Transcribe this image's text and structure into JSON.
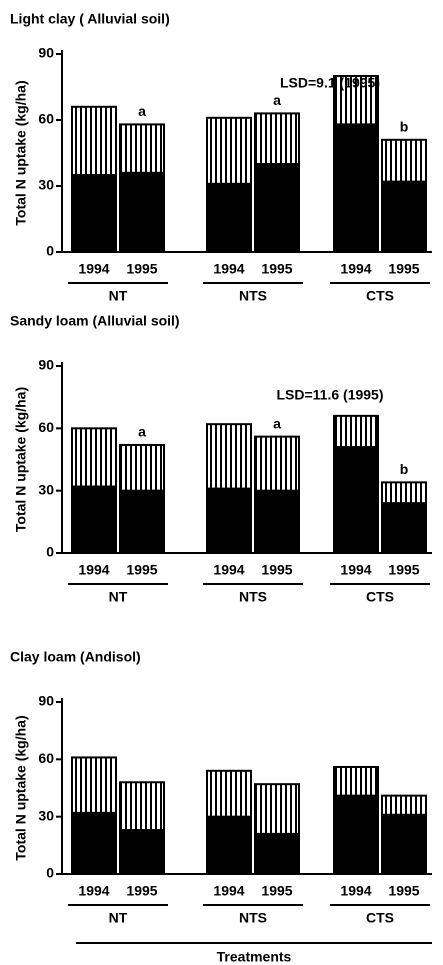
{
  "chart_data": [
    {
      "type": "bar",
      "title": "Light clay  ( Alluvial soil)",
      "ylabel": "Total N uptake (kg/ha)",
      "annotation": "LSD=9.1 (1995)",
      "categories": [
        "1994",
        "1995",
        "1994",
        "1995",
        "1994",
        "1995"
      ],
      "groups": [
        "NT",
        "NTS",
        "CTS"
      ],
      "series": [
        {
          "color": "#000000",
          "values": [
            35,
            36,
            31,
            40,
            58,
            32
          ]
        },
        {
          "color": "#ffffff",
          "hatch": true,
          "values": [
            31,
            22,
            30,
            23,
            22,
            19
          ]
        }
      ],
      "bar_labels": [
        null,
        "a",
        null,
        "a",
        null,
        "b"
      ],
      "ylim": [
        0,
        90
      ],
      "yticks": [
        0,
        30,
        60,
        90
      ]
    },
    {
      "type": "bar",
      "title": "Sandy loam (Alluvial soil)",
      "ylabel": "Total N uptake (kg/ha)",
      "annotation": "LSD=11.6 (1995)",
      "categories": [
        "1994",
        "1995",
        "1994",
        "1995",
        "1994",
        "1995"
      ],
      "groups": [
        "NT",
        "NTS",
        "CTS"
      ],
      "series": [
        {
          "color": "#000000",
          "values": [
            32,
            30,
            31,
            30,
            51,
            24
          ]
        },
        {
          "color": "#ffffff",
          "hatch": true,
          "values": [
            28,
            22,
            31,
            26,
            15,
            10
          ]
        }
      ],
      "bar_labels": [
        null,
        "a",
        null,
        "a",
        null,
        "b"
      ],
      "ylim": [
        0,
        90
      ],
      "yticks": [
        0,
        30,
        60,
        90
      ]
    },
    {
      "type": "bar",
      "title": "Clay loam (Andisol)",
      "ylabel": "Total N uptake (kg/ha)",
      "xlabel": "Treatments",
      "categories": [
        "1994",
        "1995",
        "1994",
        "1995",
        "1994",
        "1995"
      ],
      "groups": [
        "NT",
        "NTS",
        "CTS"
      ],
      "series": [
        {
          "color": "#000000",
          "values": [
            32,
            23,
            30,
            21,
            41,
            31
          ]
        },
        {
          "color": "#ffffff",
          "hatch": true,
          "values": [
            29,
            25,
            24,
            26,
            15,
            10
          ]
        }
      ],
      "ylim": [
        0,
        90
      ],
      "yticks": [
        0,
        30,
        60,
        90
      ]
    }
  ]
}
